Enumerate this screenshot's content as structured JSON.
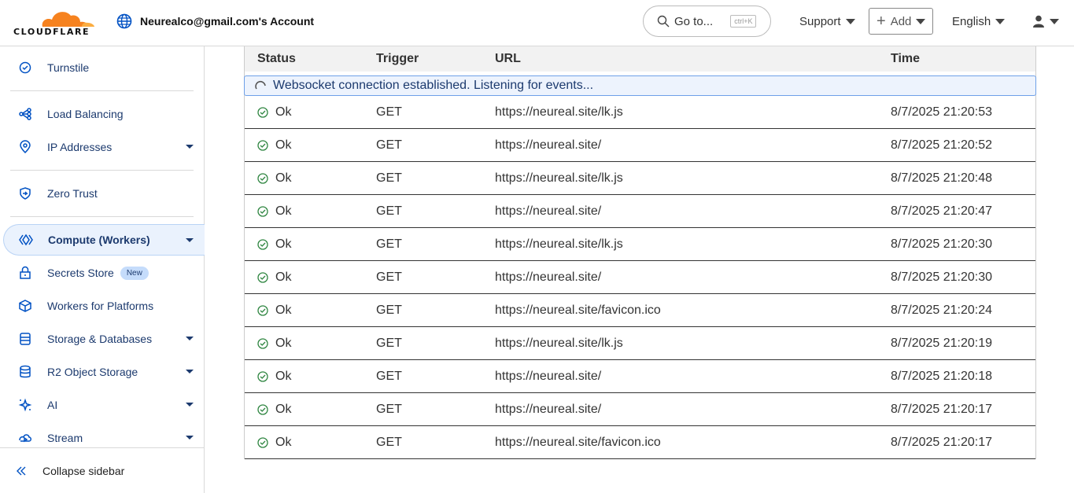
{
  "header": {
    "logo_text": "CLOUDFLARE",
    "account": "Neurealco@gmail.com's Account",
    "goto": "Go to...",
    "shortcut": "ctrl+K",
    "support": "Support",
    "add": "Add",
    "language": "English"
  },
  "sidebar": {
    "items": [
      {
        "label": "Turnstile",
        "icon": "turnstile-icon"
      },
      {
        "label": "Load Balancing",
        "icon": "load-balancing-icon"
      },
      {
        "label": "IP Addresses",
        "icon": "location-pin-icon",
        "caret": true
      },
      {
        "label": "Zero Trust",
        "icon": "zero-trust-icon"
      },
      {
        "label": "Compute (Workers)",
        "icon": "workers-icon",
        "caret": true,
        "active": true
      },
      {
        "label": "Secrets Store",
        "icon": "lock-icon",
        "badge": "New"
      },
      {
        "label": "Workers for Platforms",
        "icon": "cube-icon"
      },
      {
        "label": "Storage & Databases",
        "icon": "database-icon",
        "caret": true
      },
      {
        "label": "R2 Object Storage",
        "icon": "storage-icon",
        "caret": true
      },
      {
        "label": "AI",
        "icon": "sparkle-icon",
        "caret": true
      },
      {
        "label": "Stream",
        "icon": "stream-icon",
        "caret": true
      }
    ],
    "collapse": "Collapse sidebar"
  },
  "table": {
    "columns": [
      "Status",
      "Trigger",
      "URL",
      "Time"
    ],
    "banner": "Websocket connection established. Listening for events...",
    "rows": [
      [
        "Ok",
        "GET",
        "https://neureal.site/lk.js",
        "8/7/2025 21:20:53"
      ],
      [
        "Ok",
        "GET",
        "https://neureal.site/",
        "8/7/2025 21:20:52"
      ],
      [
        "Ok",
        "GET",
        "https://neureal.site/lk.js",
        "8/7/2025 21:20:48"
      ],
      [
        "Ok",
        "GET",
        "https://neureal.site/",
        "8/7/2025 21:20:47"
      ],
      [
        "Ok",
        "GET",
        "https://neureal.site/lk.js",
        "8/7/2025 21:20:30"
      ],
      [
        "Ok",
        "GET",
        "https://neureal.site/",
        "8/7/2025 21:20:30"
      ],
      [
        "Ok",
        "GET",
        "https://neureal.site/favicon.ico",
        "8/7/2025 21:20:24"
      ],
      [
        "Ok",
        "GET",
        "https://neureal.site/lk.js",
        "8/7/2025 21:20:19"
      ],
      [
        "Ok",
        "GET",
        "https://neureal.site/",
        "8/7/2025 21:20:18"
      ],
      [
        "Ok",
        "GET",
        "https://neureal.site/",
        "8/7/2025 21:20:17"
      ],
      [
        "Ok",
        "GET",
        "https://neureal.site/favicon.ico",
        "8/7/2025 21:20:17"
      ]
    ]
  },
  "colors": {
    "brand_orange": "#f6821f",
    "nav_text": "#1c3a6e",
    "ok_green": "#2e8540",
    "accent_blue": "#0051c3"
  }
}
